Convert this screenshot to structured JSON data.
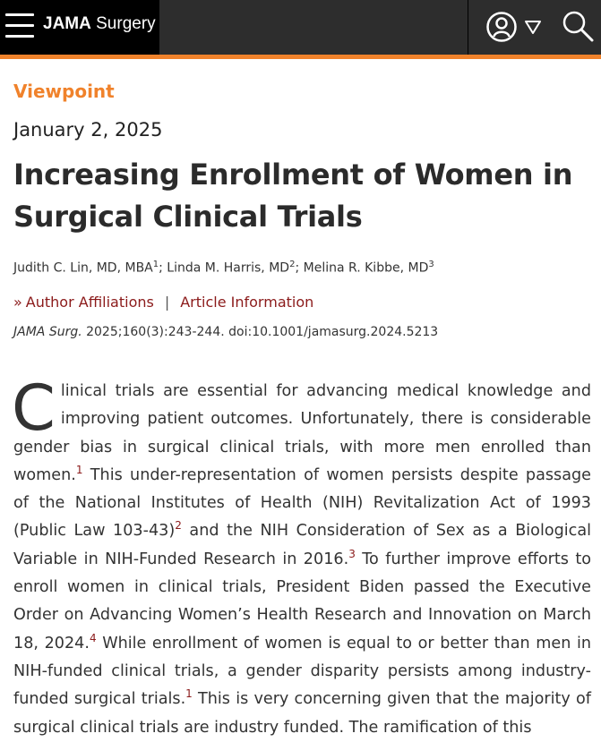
{
  "header": {
    "brand_bold": "JAMA",
    "brand_light": "Surgery"
  },
  "colors": {
    "accent": "#f0822b",
    "link": "#8b1a1a",
    "header_bg": "#2d2d2d"
  },
  "article": {
    "section": "Viewpoint",
    "date": "January 2, 2025",
    "title": "Increasing Enrollment of Women in Surgical Clinical Trials",
    "authors": [
      {
        "name": "Judith C. Lin, MD, MBA",
        "ref": "1"
      },
      {
        "name": "Linda M. Harris, MD",
        "ref": "2"
      },
      {
        "name": "Melina R. Kibbe, MD",
        "ref": "3"
      }
    ],
    "author_sep": "; ",
    "links": {
      "affiliations": "Author Affiliations",
      "separator": "|",
      "info": "Article Information"
    },
    "citation": {
      "journal": "JAMA Surg.",
      "rest": " 2025;160(3):243-244. doi:10.1001/jamasurg.2024.5213"
    },
    "body": {
      "dropcap": "C",
      "s1": "linical trials are essential for advancing medical knowledge and improving patient outcomes. Unfortunately, there is considerable gender bias in surgical clinical trials, with more men enrolled than women.",
      "r1": "1",
      "s2": " This under-representation of women persists despite passage of the National Institutes of Health (NIH) Revitalization Act of 1993 (Public Law 103-43)",
      "r2": "2",
      "s3": " and the NIH Consideration of Sex as a Biological Variable in NIH-Funded Research in 2016.",
      "r3": "3",
      "s4": " To further improve efforts to enroll women in clinical trials, President Biden passed the Executive Order on Advancing Women’s Health Research and Innovation on March 18, 2024.",
      "r4": "4",
      "s5": " While enrollment of women is equal to or better than men in NIH-funded clinical trials, a gender disparity persists among industry-funded surgical trials.",
      "r5": "1",
      "s6": " This is very concerning given that the majority of surgical clinical trials are industry funded. The ramification of this"
    }
  }
}
